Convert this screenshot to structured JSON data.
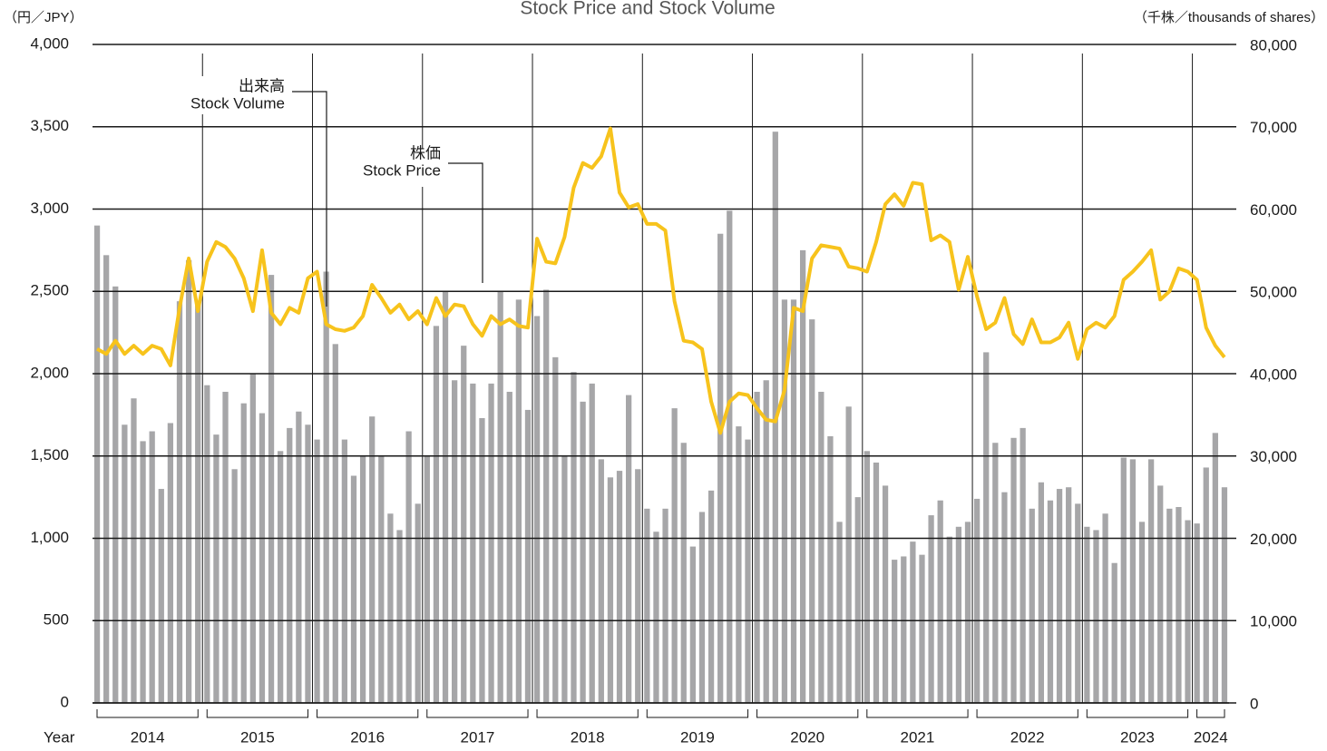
{
  "chart_data": {
    "type": "combo",
    "title": "Stock Price and Stock Volume",
    "ylabel": "（円／JPY）",
    "y2label": "（千株／thousands of shares）",
    "xlabel": "Year",
    "year_labels": [
      "2014",
      "2015",
      "2016",
      "2017",
      "2018",
      "2019",
      "2020",
      "2021",
      "2022",
      "2023",
      "2024"
    ],
    "annotations": [
      {
        "text": "出来高",
        "text2": "Stock Volume"
      },
      {
        "text": "株価",
        "text2": "Stock Price"
      }
    ],
    "ylim": [
      0,
      4000
    ],
    "yticks": [
      0,
      500,
      {
        "value": 1000,
        "label": "1,000"
      },
      {
        "value": 1500,
        "label": "1,500"
      },
      {
        "value": 2000,
        "label": "2,000"
      },
      {
        "value": 2500,
        "label": "2,500"
      },
      {
        "value": 3000,
        "label": "3,000"
      },
      {
        "value": 3500,
        "label": "3,500"
      },
      {
        "value": 4000,
        "label": "4,000"
      }
    ],
    "y2lim": [
      0,
      80000
    ],
    "y2ticks": [
      0,
      {
        "value": 10000,
        "label": "10,000"
      },
      {
        "value": 20000,
        "label": "20,000"
      },
      {
        "value": 30000,
        "label": "30,000"
      },
      {
        "value": 40000,
        "label": "40,000"
      },
      {
        "value": 50000,
        "label": "50,000"
      },
      {
        "value": 60000,
        "label": "60,000"
      },
      {
        "value": 70000,
        "label": "70,000"
      },
      {
        "value": 80000,
        "label": "80,000"
      }
    ],
    "grid": true,
    "series": [
      {
        "name": "Stock Volume",
        "type": "bar",
        "axis": "y2",
        "color": "#a6a6a8",
        "values": [
          58000,
          54400,
          50600,
          33800,
          37000,
          31800,
          33000,
          26000,
          34000,
          48800,
          53800,
          48400,
          38600,
          32600,
          37800,
          28400,
          36400,
          40000,
          35200,
          52000,
          30600,
          33400,
          35400,
          33800,
          32000,
          52400,
          43600,
          32000,
          27600,
          30000,
          34800,
          30000,
          23000,
          21000,
          33000,
          24200,
          30000,
          45800,
          50000,
          39200,
          43400,
          38800,
          34600,
          38800,
          50000,
          37800,
          49000,
          35600,
          47000,
          50200,
          42000,
          30000,
          40200,
          36600,
          38800,
          29600,
          27400,
          28200,
          37400,
          28400,
          23600,
          20800,
          23600,
          35800,
          31600,
          19000,
          23200,
          25800,
          57000,
          59800,
          33600,
          32000,
          37800,
          39200,
          69400,
          49000,
          49000,
          55000,
          46600,
          37800,
          32400,
          22000,
          36000,
          25000,
          30600,
          29200,
          26400,
          17400,
          17800,
          19600,
          18000,
          22800,
          24600,
          20200,
          21400,
          22000,
          24800,
          42600,
          31600,
          25600,
          32200,
          33400,
          23600,
          26800,
          24600,
          26000,
          26200,
          24200,
          21400,
          21000,
          23000,
          17000,
          29800,
          29600,
          22000,
          29600,
          26400,
          23600,
          23800,
          22200,
          21800,
          28600,
          32800,
          26200
        ]
      },
      {
        "name": "Stock Price",
        "type": "line",
        "axis": "y",
        "color": "#f7c31c",
        "values": [
          2150,
          2120,
          2200,
          2120,
          2170,
          2120,
          2170,
          2150,
          2050,
          2400,
          2700,
          2380,
          2680,
          2800,
          2770,
          2700,
          2580,
          2380,
          2750,
          2370,
          2300,
          2400,
          2370,
          2580,
          2620,
          2300,
          2270,
          2260,
          2280,
          2350,
          2540,
          2460,
          2370,
          2420,
          2330,
          2380,
          2300,
          2460,
          2350,
          2420,
          2410,
          2300,
          2230,
          2350,
          2300,
          2330,
          2290,
          2280,
          2820,
          2680,
          2670,
          2830,
          3130,
          3280,
          3250,
          3320,
          3490,
          3100,
          3010,
          3030,
          2910,
          2910,
          2870,
          2440,
          2200,
          2190,
          2150,
          1830,
          1640,
          1830,
          1880,
          1870,
          1790,
          1720,
          1710,
          1900,
          2400,
          2380,
          2700,
          2780,
          2770,
          2760,
          2650,
          2640,
          2620,
          2800,
          3030,
          3090,
          3020,
          3160,
          3150,
          2810,
          2840,
          2800,
          2510,
          2710,
          2470,
          2270,
          2310,
          2460,
          2240,
          2180,
          2330,
          2190,
          2190,
          2220,
          2310,
          2090,
          2270,
          2310,
          2280,
          2350,
          2570,
          2620,
          2680,
          2750,
          2450,
          2500,
          2640,
          2620,
          2570,
          2280,
          2170,
          2100
        ]
      }
    ]
  }
}
